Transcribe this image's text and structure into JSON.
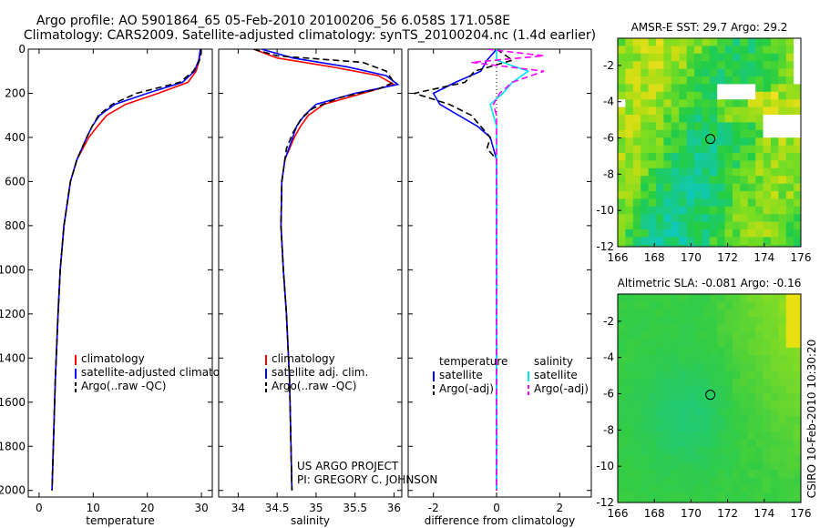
{
  "title_line1": "Argo profile: AO 5901864_65 05-Feb-2010 20100206_56 6.058S 171.058E",
  "title_line2": "Climatology: CARS2009. Satellite-adjusted climatology: synTS_20100204.nc (1.4d earlier)",
  "side_label": "CSIRO 10-Feb-2010 10:30:20",
  "project_line1": "US ARGO PROJECT",
  "project_line2": "PI: GREGORY C. JOHNSON",
  "colors": {
    "climatology": "#ff0000",
    "satellite": "#0000ff",
    "argo": "#000000",
    "salinity_satellite": "#00e5ee",
    "salinity_argo": "#ff00ff"
  },
  "chart_data": [
    {
      "type": "line",
      "id": "temperature",
      "xlabel": "temperature",
      "xlim": [
        -2,
        32
      ],
      "xticks": [
        0,
        10,
        20,
        30
      ],
      "ylim": [
        2030,
        0
      ],
      "yticks": [
        0,
        200,
        400,
        600,
        800,
        1000,
        1200,
        1400,
        1600,
        1800,
        2000
      ],
      "legend": [
        "climatology",
        "satellite-adjusted climatology",
        "Argo(..raw -QC)"
      ],
      "series": [
        {
          "name": "climatology",
          "style": "solid",
          "color": "#ff0000",
          "depth": [
            0,
            50,
            100,
            150,
            200,
            250,
            300,
            350,
            400,
            500,
            600,
            800,
            1000,
            1200,
            1500,
            2000
          ],
          "values": [
            29.8,
            29.6,
            29.0,
            27.5,
            22.0,
            16.0,
            12.5,
            10.8,
            9.2,
            7.0,
            5.8,
            4.6,
            3.9,
            3.5,
            3.0,
            2.4
          ]
        },
        {
          "name": "satellite-adjusted climatology",
          "style": "solid",
          "color": "#0000ff",
          "depth": [
            0,
            50,
            100,
            150,
            200,
            250,
            300,
            350,
            400,
            500,
            600,
            800,
            1000,
            1200,
            1500,
            2000
          ],
          "values": [
            29.8,
            29.5,
            28.7,
            26.5,
            20.0,
            14.0,
            11.2,
            9.8,
            8.8,
            7.0,
            5.8,
            4.6,
            3.9,
            3.5,
            3.0,
            2.4
          ]
        },
        {
          "name": "Argo(..raw -QC)",
          "style": "dashed",
          "color": "#000000",
          "depth": [
            0,
            30,
            60,
            100,
            150,
            200,
            250,
            300,
            350,
            400,
            500,
            600,
            800,
            1000,
            1200,
            1500,
            2000
          ],
          "values": [
            29.9,
            29.9,
            29.5,
            28.5,
            26.0,
            18.0,
            13.5,
            11.0,
            9.8,
            8.8,
            7.0,
            5.8,
            4.6,
            3.9,
            3.5,
            3.0,
            2.4
          ]
        }
      ]
    },
    {
      "type": "line",
      "id": "salinity",
      "xlabel": "salinity",
      "xlim": [
        33.75,
        36.1
      ],
      "xticks": [
        34,
        34.5,
        35,
        35.5,
        36
      ],
      "ylim": [
        2030,
        0
      ],
      "legend": [
        "climatology",
        "satellite adj. clim.",
        "Argo(..raw -QC)"
      ],
      "series": [
        {
          "name": "climatology",
          "style": "solid",
          "color": "#ff0000",
          "depth": [
            0,
            40,
            80,
            120,
            160,
            200,
            250,
            300,
            350,
            400,
            500,
            600,
            800,
            1000,
            1200,
            1500,
            2000
          ],
          "values": [
            34.2,
            34.5,
            35.2,
            35.8,
            36.0,
            35.6,
            35.1,
            34.9,
            34.8,
            34.72,
            34.6,
            34.56,
            34.55,
            34.58,
            34.62,
            34.66,
            34.69
          ]
        },
        {
          "name": "satellite adj. clim.",
          "style": "solid",
          "color": "#0000ff",
          "depth": [
            0,
            40,
            80,
            120,
            160,
            200,
            250,
            300,
            350,
            400,
            500,
            600,
            800,
            1000,
            1200,
            1500,
            2000
          ],
          "values": [
            34.3,
            34.7,
            35.4,
            35.9,
            36.05,
            35.5,
            35.0,
            34.85,
            34.75,
            34.7,
            34.6,
            34.56,
            34.55,
            34.58,
            34.62,
            34.66,
            34.69
          ]
        },
        {
          "name": "Argo(..raw -QC)",
          "style": "dashed",
          "color": "#000000",
          "depth": [
            0,
            30,
            60,
            100,
            150,
            180,
            220,
            270,
            320,
            380,
            450,
            600,
            800,
            1000,
            1200,
            1500,
            2000
          ],
          "values": [
            34.2,
            34.5,
            35.6,
            35.9,
            36.0,
            35.8,
            35.3,
            34.95,
            34.8,
            34.7,
            34.62,
            34.56,
            34.55,
            34.58,
            34.62,
            34.66,
            34.69
          ]
        }
      ]
    },
    {
      "type": "line",
      "id": "difference",
      "xlabel": "difference from climatology",
      "xlim": [
        -2.8,
        3.0
      ],
      "xticks": [
        -2,
        0,
        2
      ],
      "ylim": [
        2030,
        0
      ],
      "legend_columns": [
        {
          "header": "temperature",
          "items": [
            "satellite",
            "Argo(-adj)"
          ]
        },
        {
          "header": "salinity",
          "items": [
            "satellite",
            "Argo(-adj)"
          ]
        }
      ],
      "series": [
        {
          "name": "temperature satellite",
          "style": "solid",
          "color": "#0000ff",
          "depth": [
            0,
            50,
            100,
            150,
            200,
            250,
            300,
            350,
            400,
            500,
            800,
            1200,
            2000
          ],
          "values": [
            0.0,
            -0.3,
            -0.5,
            -1.3,
            -2.0,
            -1.8,
            -1.2,
            -0.6,
            -0.2,
            0.0,
            0.0,
            0.0,
            0.0
          ]
        },
        {
          "name": "temperature Argo(-adj)",
          "style": "dashed",
          "color": "#000000",
          "depth": [
            0,
            50,
            100,
            150,
            200,
            250,
            300,
            350,
            400,
            450,
            500,
            800,
            1200,
            2000
          ],
          "values": [
            0.0,
            0.5,
            -0.7,
            -1.0,
            -2.6,
            -1.5,
            -0.8,
            -0.5,
            -0.2,
            -0.3,
            0.0,
            0.0,
            0.0,
            0.0
          ]
        },
        {
          "name": "salinity satellite",
          "style": "solid",
          "color": "#00e5ee",
          "depth": [
            0,
            50,
            100,
            150,
            200,
            250,
            300,
            350,
            400,
            500,
            800,
            1200,
            2000
          ],
          "values": [
            0.0,
            0.0,
            1.0,
            0.5,
            0.2,
            -0.2,
            -0.1,
            0.0,
            0.0,
            0.0,
            0.0,
            0.0,
            0.0
          ]
        },
        {
          "name": "salinity Argo(-adj)",
          "style": "dashed",
          "color": "#ff00ff",
          "depth": [
            0,
            30,
            60,
            100,
            150,
            200,
            250,
            300,
            400,
            500,
            800,
            1200,
            2000
          ],
          "values": [
            -0.3,
            1.5,
            -0.8,
            1.5,
            0.5,
            0.1,
            -0.1,
            0.0,
            0.0,
            0.0,
            0.0,
            0.0,
            0.0
          ]
        }
      ]
    },
    {
      "type": "heatmap",
      "id": "sst_map",
      "title": "AMSR-E SST: 29.7  Argo: 29.2",
      "xlim": [
        166,
        176
      ],
      "ylim": [
        -12,
        -0.5
      ],
      "xticks": [
        166,
        168,
        170,
        172,
        174,
        176
      ],
      "yticks": [
        -2,
        -4,
        -6,
        -8,
        -10,
        -12
      ],
      "argo_position": {
        "lon": 171.058,
        "lat": -6.058
      }
    },
    {
      "type": "heatmap",
      "id": "sla_map",
      "title": "Altimetric SLA: -0.081  Argo: -0.16",
      "xlim": [
        166,
        176
      ],
      "ylim": [
        -12,
        -0.5
      ],
      "xticks": [
        166,
        168,
        170,
        172,
        174,
        176
      ],
      "yticks": [
        -2,
        -4,
        -6,
        -8,
        -10,
        -12
      ],
      "argo_position": {
        "lon": 171.058,
        "lat": -6.058
      }
    }
  ]
}
